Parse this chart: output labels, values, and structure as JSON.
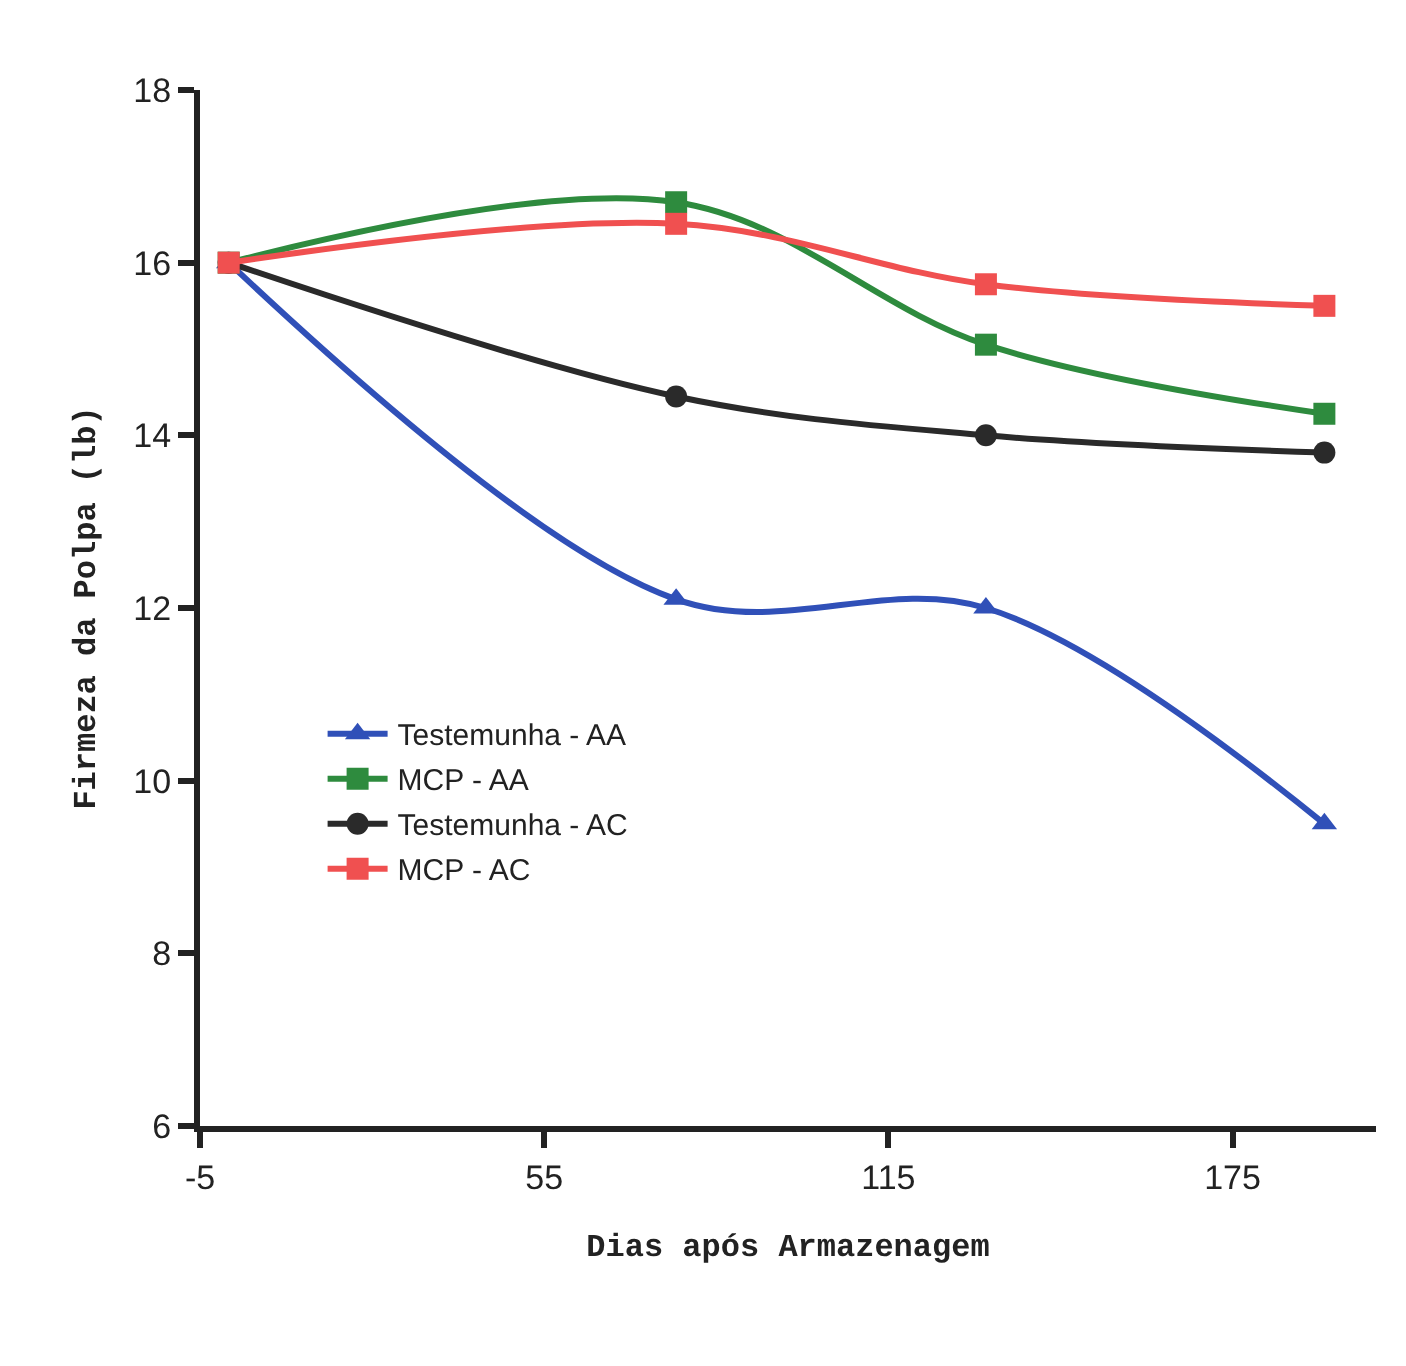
{
  "chart_data": {
    "type": "line",
    "xlabel": "Dias após Armazenagem",
    "ylabel": "Firmeza da Polpa (lb)",
    "x": [
      0,
      78,
      132,
      191
    ],
    "xlim": [
      -5,
      200
    ],
    "xticks": [
      -5,
      55,
      115,
      175
    ],
    "ylim": [
      6,
      18
    ],
    "yticks": [
      6,
      8,
      10,
      12,
      14,
      16,
      18
    ],
    "legend": "left",
    "line_style": "solid",
    "series": [
      {
        "name": "Testemunha - AA",
        "color": "#3050b8",
        "marker": "triangle",
        "values": [
          16,
          12.1,
          12.0,
          9.5
        ]
      },
      {
        "name": "MCP - AA",
        "color": "#2e8b3e",
        "marker": "square",
        "values": [
          16,
          16.7,
          15.05,
          14.25
        ]
      },
      {
        "name": "Testemunha - AC",
        "color": "#2a2a2a",
        "marker": "circle",
        "values": [
          16,
          14.45,
          14.0,
          13.8
        ]
      },
      {
        "name": "MCP - AC",
        "color": "#f05050",
        "marker": "square",
        "values": [
          16,
          16.45,
          15.75,
          15.5
        ]
      }
    ]
  }
}
